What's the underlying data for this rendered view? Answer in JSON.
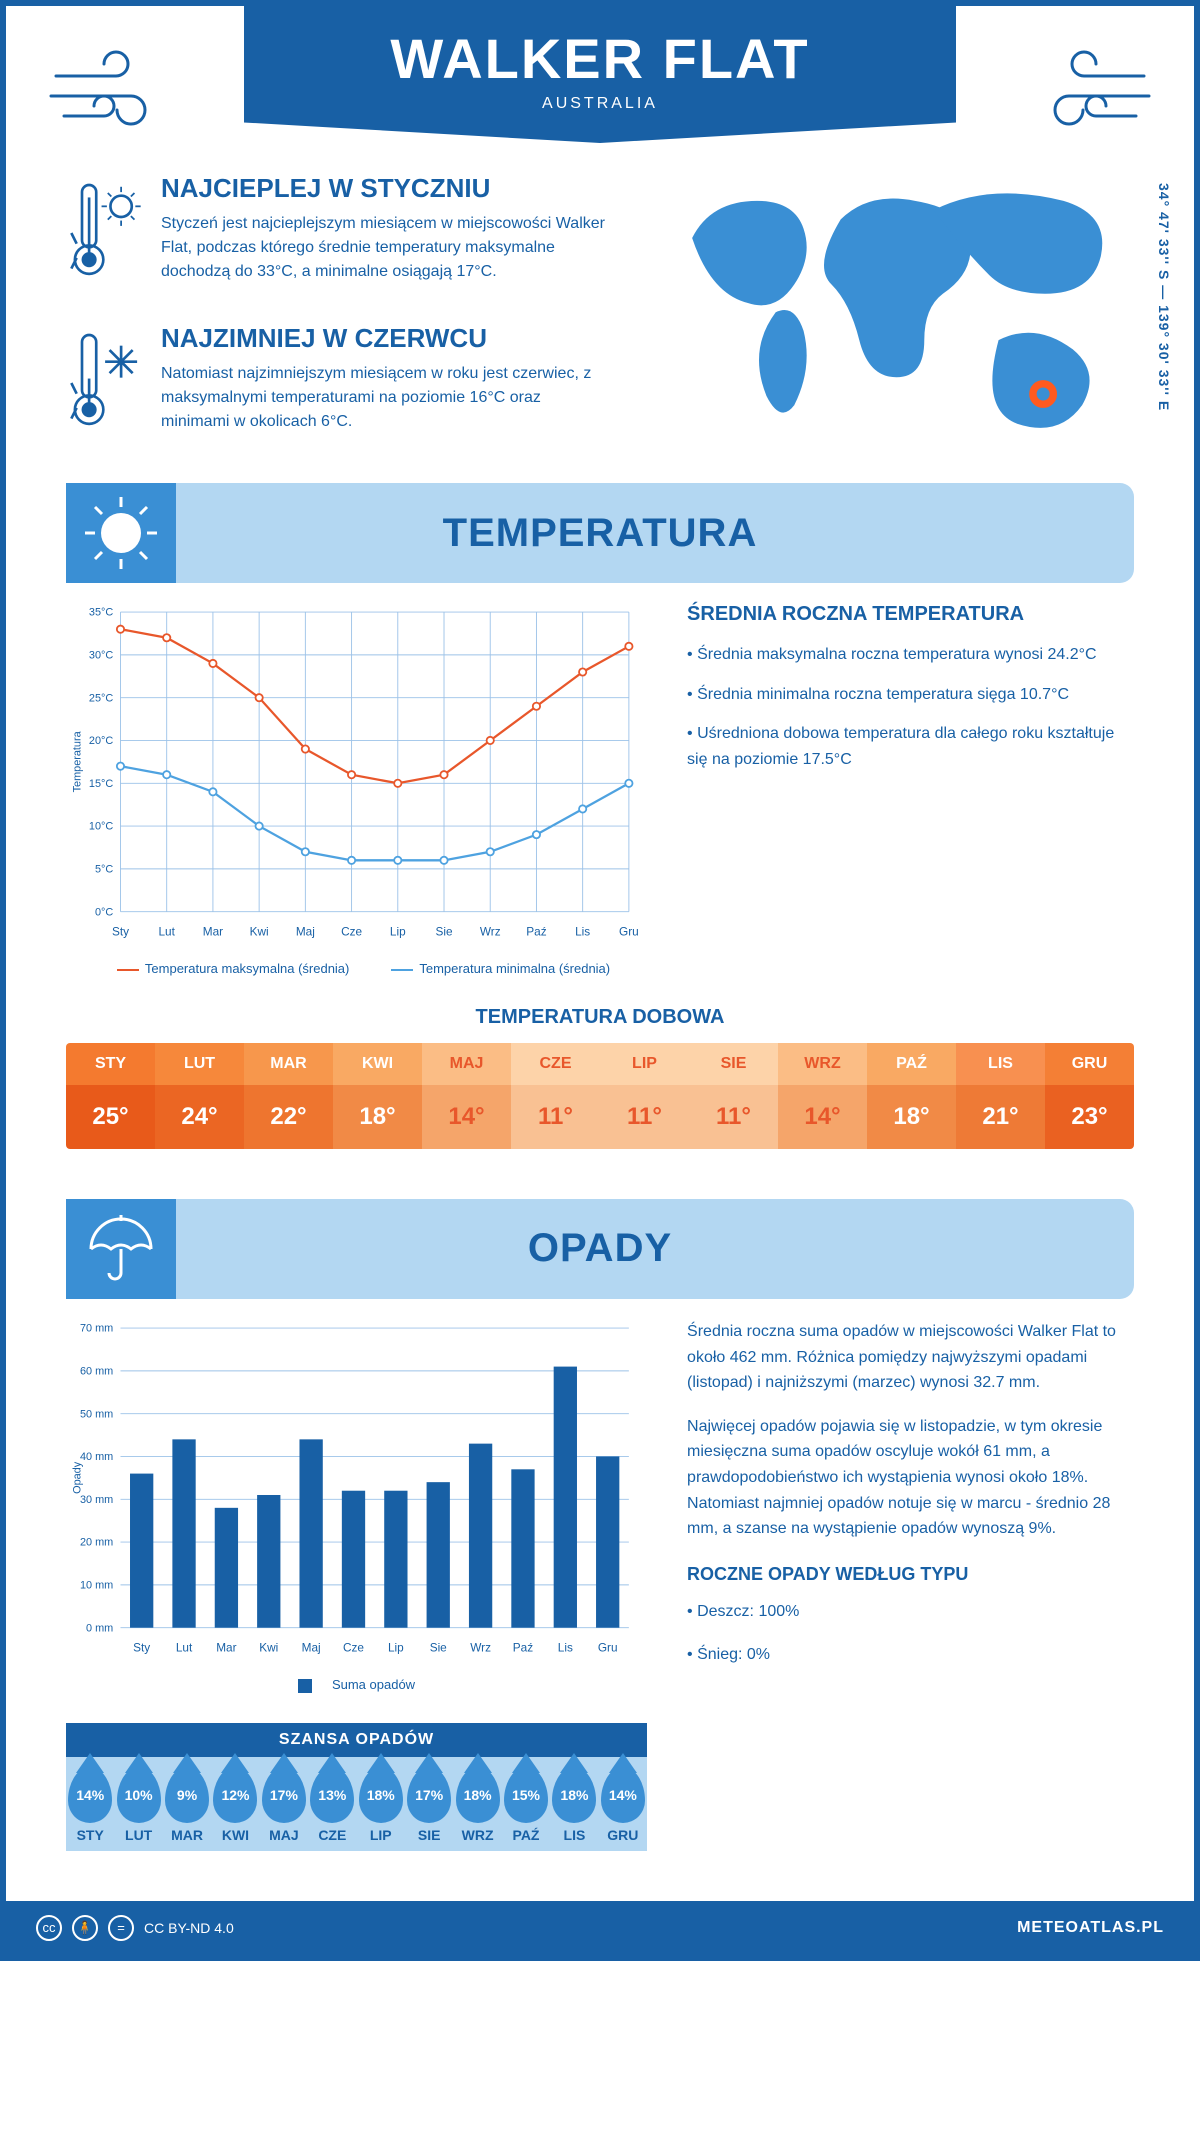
{
  "header": {
    "title": "WALKER FLAT",
    "subtitle": "AUSTRALIA"
  },
  "coords": "34° 47' 33'' S — 139° 30' 33'' E",
  "intro": {
    "hot": {
      "title": "NAJCIEPLEJ W STYCZNIU",
      "text": "Styczeń jest najcieplejszym miesiącem w miejscowości Walker Flat, podczas którego średnie temperatury maksymalne dochodzą do 33°C, a minimalne osiągają 17°C."
    },
    "cold": {
      "title": "NAJZIMNIEJ W CZERWCU",
      "text": "Natomiast najzimniejszym miesiącem w roku jest czerwiec, z maksymalnymi temperaturami na poziomie 16°C oraz minimami w okolicach 6°C."
    }
  },
  "months_short": [
    "Sty",
    "Lut",
    "Mar",
    "Kwi",
    "Maj",
    "Cze",
    "Lip",
    "Sie",
    "Wrz",
    "Paź",
    "Lis",
    "Gru"
  ],
  "months_upper": [
    "STY",
    "LUT",
    "MAR",
    "KWI",
    "MAJ",
    "CZE",
    "LIP",
    "SIE",
    "WRZ",
    "PAŹ",
    "LIS",
    "GRU"
  ],
  "temperature": {
    "section_title": "TEMPERATURA",
    "chart": {
      "type": "line",
      "ylim": [
        0,
        35
      ],
      "ytick_step": 5,
      "y_unit": "°C",
      "ylabel": "Temperatura",
      "series": [
        {
          "name": "Temperatura maksymalna (średnia)",
          "color": "#e8572b",
          "values": [
            33,
            32,
            29,
            25,
            19,
            16,
            15,
            16,
            20,
            24,
            28,
            31
          ]
        },
        {
          "name": "Temperatura minimalna (średnia)",
          "color": "#4ea2e0",
          "values": [
            17,
            16,
            14,
            10,
            7,
            6,
            6,
            6,
            7,
            9,
            12,
            15
          ]
        }
      ],
      "grid_color": "#9cc2e8",
      "label_fontsize": 12
    },
    "avg_block": {
      "title": "ŚREDNIA ROCZNA TEMPERATURA",
      "lines": [
        "• Średnia maksymalna roczna temperatura wynosi 24.2°C",
        "• Średnia minimalna roczna temperatura sięga 10.7°C",
        "• Uśredniona dobowa temperatura dla całego roku kształtuje się na poziomie 17.5°C"
      ]
    },
    "dobowa": {
      "title": "TEMPERATURA DOBOWA",
      "values": [
        "25°",
        "24°",
        "22°",
        "18°",
        "14°",
        "11°",
        "11°",
        "11°",
        "14°",
        "18°",
        "21°",
        "23°"
      ],
      "header_colors": [
        "#f47a2f",
        "#f6883b",
        "#f7974c",
        "#f9a963",
        "#fbbd85",
        "#fdd3a9",
        "#fdd3a9",
        "#fdd3a9",
        "#fbbd85",
        "#f9a963",
        "#f89050",
        "#f47f35"
      ],
      "value_colors": [
        "#e85a1a",
        "#eb6623",
        "#ee752f",
        "#f18a46",
        "#f5a56a",
        "#f9c193",
        "#f9c193",
        "#f9c193",
        "#f5a56a",
        "#f18a46",
        "#ee7a36",
        "#ea6121"
      ],
      "header_text": [
        "#ffffff",
        "#ffffff",
        "#ffffff",
        "#ffffff",
        "#e8572b",
        "#e8572b",
        "#e8572b",
        "#e8572b",
        "#e8572b",
        "#ffffff",
        "#ffffff",
        "#ffffff"
      ],
      "value_text": [
        "#ffffff",
        "#ffffff",
        "#ffffff",
        "#ffffff",
        "#e8572b",
        "#e8572b",
        "#e8572b",
        "#e8572b",
        "#e8572b",
        "#ffffff",
        "#ffffff",
        "#ffffff"
      ]
    }
  },
  "precip": {
    "section_title": "OPADY",
    "chart": {
      "type": "bar",
      "ylim": [
        0,
        70
      ],
      "ytick_step": 10,
      "y_unit": " mm",
      "ylabel": "Opady",
      "bar_color": "#1860a5",
      "grid_color": "#9cc2e8",
      "values": [
        36,
        44,
        28,
        31,
        44,
        32,
        32,
        34,
        43,
        37,
        61,
        40
      ],
      "legend_label": "Suma opadów"
    },
    "text1": "Średnia roczna suma opadów w miejscowości Walker Flat to około 462 mm. Różnica pomiędzy najwyższymi opadami (listopad) i najniższymi (marzec) wynosi 32.7 mm.",
    "text2": "Najwięcej opadów pojawia się w listopadzie, w tym okresie miesięczna suma opadów oscyluje wokół 61 mm, a prawdopodobieństwo ich wystąpienia wynosi około 18%. Natomiast najmniej opadów notuje się w marcu - średnio 28 mm, a szanse na wystąpienie opadów wynoszą 9%.",
    "chance": {
      "title": "SZANSA OPADÓW",
      "values": [
        "14%",
        "10%",
        "9%",
        "12%",
        "17%",
        "13%",
        "18%",
        "17%",
        "18%",
        "15%",
        "18%",
        "14%"
      ]
    },
    "by_type": {
      "title": "ROCZNE OPADY WEDŁUG TYPU",
      "lines": [
        "• Deszcz: 100%",
        "• Śnieg: 0%"
      ]
    }
  },
  "footer": {
    "license": "CC BY-ND 4.0",
    "brand": "METEOATLAS.PL"
  },
  "colors": {
    "primary": "#1860a5",
    "light": "#b3d7f2",
    "mid": "#3a8fd4",
    "marker": "#ff5a1f"
  }
}
